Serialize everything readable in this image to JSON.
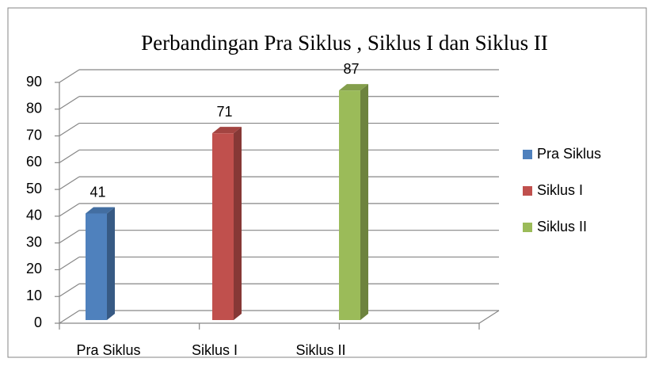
{
  "chart_data": {
    "type": "bar3d",
    "title": "Perbandingan Pra Siklus , Siklus I dan Siklus II",
    "categories": [
      "Pra Siklus",
      "Siklus I",
      "Siklus II"
    ],
    "values": [
      41,
      71,
      87
    ],
    "colors": [
      "#4f81bd",
      "#c0504d",
      "#9bbb59"
    ],
    "ylim": [
      0,
      90
    ],
    "yticks": [
      0,
      10,
      20,
      30,
      40,
      50,
      60,
      70,
      80,
      90
    ],
    "grid": true,
    "legend": "right"
  }
}
